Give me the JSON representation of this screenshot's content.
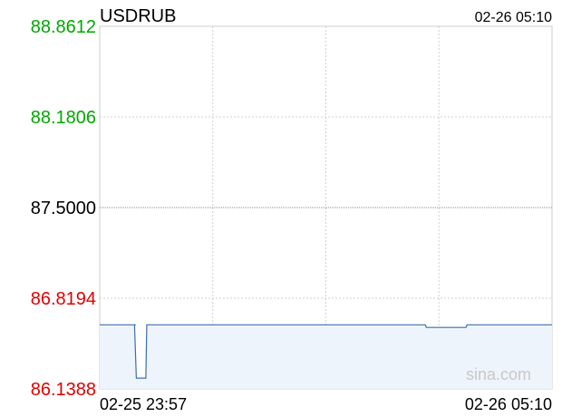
{
  "chart_data": {
    "type": "line",
    "title": "USDRUB",
    "timestamp": "02-26 05:10",
    "x_start_label": "02-25 23:57",
    "x_end_label": "02-26 05:10",
    "yticks": [
      "88.8612",
      "88.1806",
      "87.5000",
      "86.8194",
      "86.1388"
    ],
    "ylim": [
      86.1388,
      88.8612
    ],
    "reference_value": 87.5,
    "watermark": "sina.com",
    "colors": {
      "above_reference": "#00a800",
      "reference": "#000000",
      "below_reference": "#e00000",
      "line": "#3a6fb0",
      "fill": "#eef4fb",
      "grid": "#d0d0d0"
    },
    "series": [
      {
        "x": [
          0,
          0.08,
          0.077,
          0.081,
          0.102,
          0.104,
          0.72,
          0.722,
          0.81,
          0.812,
          1
        ],
        "values": [
          86.62,
          86.62,
          86.62,
          86.22,
          86.22,
          86.62,
          86.62,
          86.6,
          86.6,
          86.62,
          86.62
        ]
      }
    ]
  }
}
